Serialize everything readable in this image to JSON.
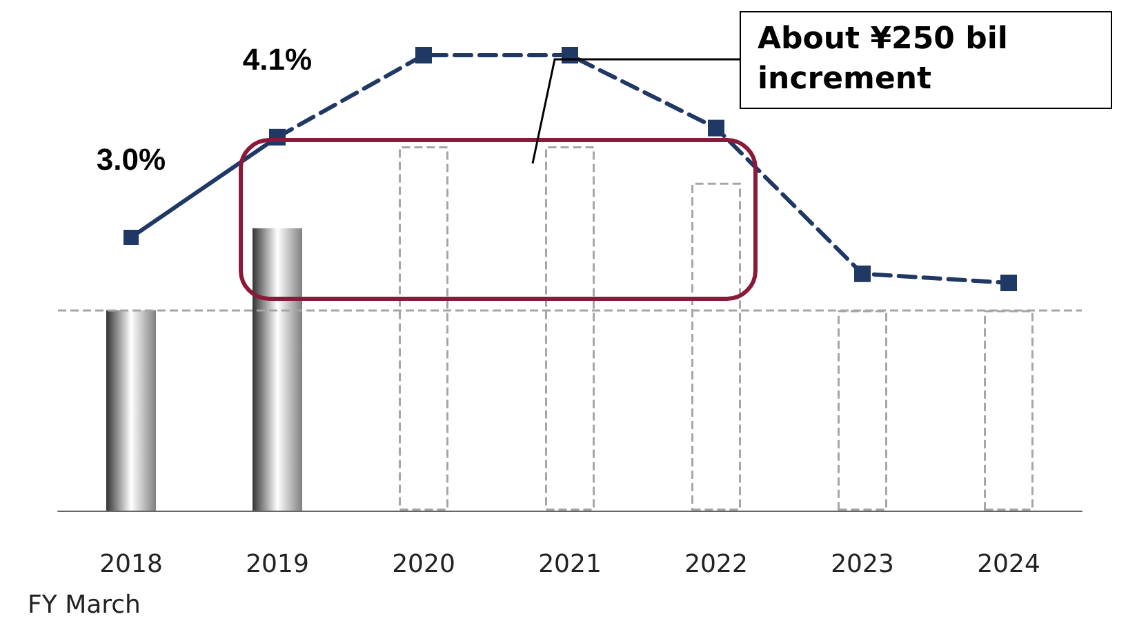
{
  "chart_data": {
    "type": "bar",
    "xlabel": "FY March",
    "categories": [
      "2018",
      "2019",
      "2020",
      "2021",
      "2022",
      "2023",
      "2024"
    ],
    "series": [
      {
        "color": "#808080",
        "values": [
          2.2,
          3.1,
          null,
          null,
          null,
          null,
          null
        ]
      },
      {
        "type": "bar",
        "color": "#a6a6a6",
        "line_style": "dashed",
        "values": [
          null,
          null,
          4.0,
          4.0,
          3.6,
          2.2,
          2.2
        ]
      },
      {
        "type": "line",
        "color": "#203864",
        "marker": "square",
        "line_style": "solid",
        "values": [
          3.0,
          4.1,
          null,
          null,
          null,
          null,
          null
        ],
        "value_labels": [
          "3.0%",
          "4.1%",
          null,
          null,
          null,
          null,
          null
        ]
      },
      {
        "type": "line",
        "color": "#203864",
        "marker": "square",
        "line_style": "dashed",
        "values": [
          null,
          4.1,
          5.0,
          5.0,
          4.2,
          2.6,
          2.5
        ]
      }
    ],
    "tick_labels": "x",
    "grid": false,
    "ref_lines": [
      {
        "axis": "y",
        "value": 2.2,
        "color": "#a6a6a6",
        "line_style": "dashed"
      }
    ],
    "annotations": [
      "About ¥250 bil increment"
    ]
  }
}
